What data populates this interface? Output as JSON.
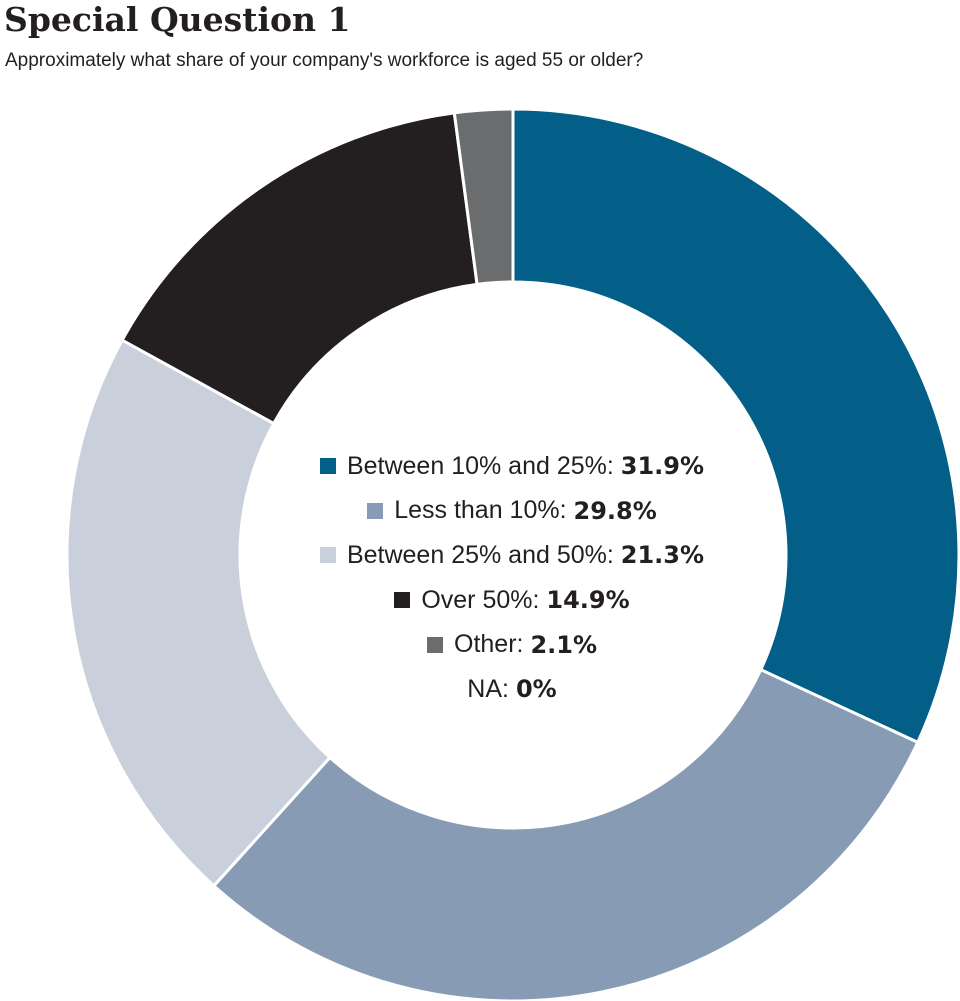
{
  "title": "Special Question 1",
  "subtitle": "Approximately what share of your company's workforce is aged 55 or older?",
  "chart_data": {
    "type": "pie",
    "style": "donut",
    "title": "Special Question 1",
    "subtitle": "Approximately what share of your company's workforce is aged 55 or older?",
    "slices": [
      {
        "label": "Between 10% and 25%",
        "value": 31.9,
        "display": "31.9%",
        "color": "#035f87"
      },
      {
        "label": "Less than 10%",
        "value": 29.8,
        "display": "29.8%",
        "color": "#879bb5"
      },
      {
        "label": "Between 25% and 50%",
        "value": 21.3,
        "display": "21.3%",
        "color": "#c9d0db"
      },
      {
        "label": "Over 50%",
        "value": 14.9,
        "display": "14.9%",
        "color": "#231f20"
      },
      {
        "label": "Other",
        "value": 2.1,
        "display": "2.1%",
        "color": "#6b6c6e"
      },
      {
        "label": "NA",
        "value": 0,
        "display": "0%",
        "color": null
      }
    ],
    "legend_position": "center"
  }
}
